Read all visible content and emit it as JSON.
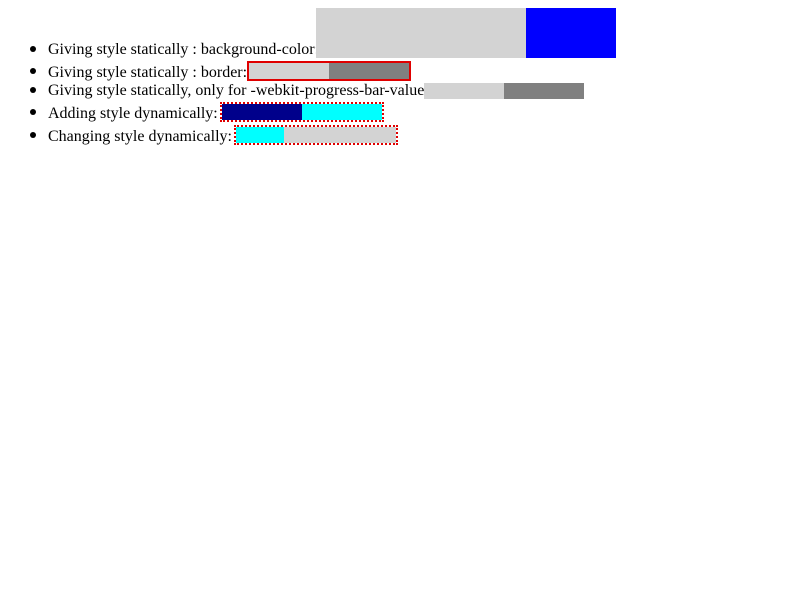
{
  "items": [
    {
      "label": "Giving style statically : background-color:",
      "progress": {
        "value": 0.7,
        "fill_color": "#d3d3d3",
        "track_color": "#0000ff"
      }
    },
    {
      "label": "Giving style statically : border:",
      "progress": {
        "value": 0.5,
        "fill_color": "#d3d3d3",
        "track_color": "#808080",
        "border_color": "#e00000"
      }
    },
    {
      "label": "Giving style statically, only for -webkit-progress-bar-value:",
      "progress": {
        "value": 0.5,
        "fill_color": "#d3d3d3",
        "track_color": "#808080"
      }
    },
    {
      "label": "Adding style dynamically:",
      "progress": {
        "value": 0.5,
        "fill_color": "#00008b",
        "track_color": "#00ffff",
        "border_color": "#e00000"
      }
    },
    {
      "label": "Changing style dynamically:",
      "progress": {
        "value": 0.3,
        "fill_color": "#00ffff",
        "track_color": "#d3d3d3",
        "border_color": "#e00000"
      }
    }
  ]
}
